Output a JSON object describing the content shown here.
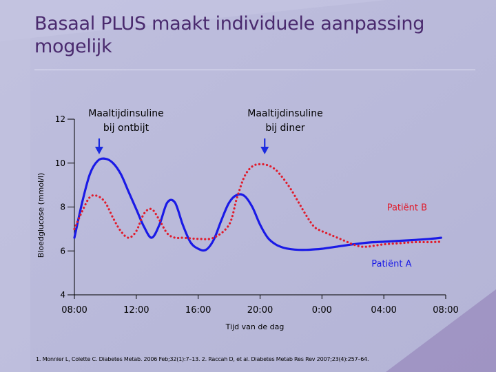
{
  "slide": {
    "title_line1": "Basaal PLUS maakt individuele aanpassing",
    "title_line2": "mogelijk",
    "footnote": "1. Monnier L, Colette C. Diabetes Metab. 2006 Feb;32(1):7–13. 2. Raccah D, et al. Diabetes Metab Res Rev 2007;23(4):257–64."
  },
  "colors": {
    "background": "#b9b9da",
    "title": "#4a2a6e",
    "patient_a": "#1a1ae6",
    "patient_b": "#e01c2c",
    "arrow": "#1a2ae0",
    "axis": "#000000"
  },
  "chart_data": {
    "type": "line",
    "xlabel": "Tijd van de dag",
    "ylabel": "Bloedglucose (mmol/l)",
    "xlim": [
      8,
      32
    ],
    "ylim": [
      4,
      12
    ],
    "x_ticks": [
      {
        "value": 8,
        "label": "08:00"
      },
      {
        "value": 12,
        "label": "12:00"
      },
      {
        "value": 16,
        "label": "16:00"
      },
      {
        "value": 20,
        "label": "20:00"
      },
      {
        "value": 24,
        "label": "0:00"
      },
      {
        "value": 28,
        "label": "04:00"
      },
      {
        "value": 32,
        "label": "08:00"
      }
    ],
    "y_ticks": [
      {
        "value": 4,
        "label": "4"
      },
      {
        "value": 6,
        "label": "6"
      },
      {
        "value": 8,
        "label": "8"
      },
      {
        "value": 10,
        "label": "10"
      },
      {
        "value": 12,
        "label": "12"
      }
    ],
    "series": [
      {
        "name": "Patiënt A",
        "color": "#1a1ae6",
        "style": "solid",
        "x": [
          8.0,
          8.5,
          9.0,
          9.5,
          10.0,
          10.5,
          11.0,
          11.5,
          12.0,
          12.5,
          13.0,
          13.5,
          14.0,
          14.5,
          15.0,
          15.5,
          16.0,
          16.5,
          17.0,
          17.5,
          18.0,
          18.5,
          19.0,
          19.5,
          20.0,
          20.5,
          21.0,
          21.5,
          22.0,
          22.5,
          23.0,
          23.5,
          24.0,
          25.0,
          26.0,
          27.0,
          28.0,
          29.0,
          30.0,
          31.0,
          31.7
        ],
        "y": [
          6.6,
          8.2,
          9.5,
          10.1,
          10.2,
          10.0,
          9.5,
          8.7,
          7.9,
          7.1,
          6.6,
          7.2,
          8.2,
          8.2,
          7.2,
          6.4,
          6.1,
          6.05,
          6.5,
          7.4,
          8.2,
          8.55,
          8.5,
          8.0,
          7.2,
          6.6,
          6.3,
          6.15,
          6.08,
          6.05,
          6.05,
          6.07,
          6.1,
          6.2,
          6.3,
          6.38,
          6.42,
          6.46,
          6.5,
          6.55,
          6.6
        ]
      },
      {
        "name": "Patiënt B",
        "color": "#e01c2c",
        "style": "dotted",
        "x": [
          8.0,
          8.5,
          9.0,
          9.5,
          10.0,
          10.5,
          11.0,
          11.5,
          12.0,
          12.5,
          13.0,
          13.5,
          14.0,
          14.5,
          15.0,
          16.0,
          17.0,
          18.0,
          18.5,
          19.0,
          19.5,
          20.0,
          20.5,
          21.0,
          21.5,
          22.0,
          22.5,
          23.0,
          23.5,
          24.0,
          24.5,
          25.0,
          25.5,
          26.0,
          26.5,
          27.0,
          28.0,
          29.0,
          30.0,
          31.0,
          31.7
        ],
        "y": [
          7.0,
          7.8,
          8.45,
          8.5,
          8.2,
          7.5,
          6.9,
          6.6,
          6.9,
          7.7,
          7.9,
          7.4,
          6.8,
          6.6,
          6.6,
          6.55,
          6.6,
          7.2,
          8.4,
          9.4,
          9.85,
          9.95,
          9.9,
          9.7,
          9.3,
          8.8,
          8.2,
          7.6,
          7.1,
          6.9,
          6.75,
          6.6,
          6.45,
          6.3,
          6.2,
          6.2,
          6.3,
          6.35,
          6.4,
          6.4,
          6.42
        ]
      }
    ],
    "annotations": [
      {
        "text_line1": "Maaltijdinsuline",
        "text_line2": "bij ontbijt",
        "arrow_x": 9.6
      },
      {
        "text_line1": "Maaltijdinsuline",
        "text_line2": "bij diner",
        "arrow_x": 20.3
      }
    ],
    "series_labels": [
      {
        "text": "Patiënt B",
        "x": 29.5,
        "y": 8.0
      },
      {
        "text": "Patiënt A",
        "x": 28.5,
        "y": 5.45
      }
    ],
    "grid": false,
    "legend": "none"
  }
}
